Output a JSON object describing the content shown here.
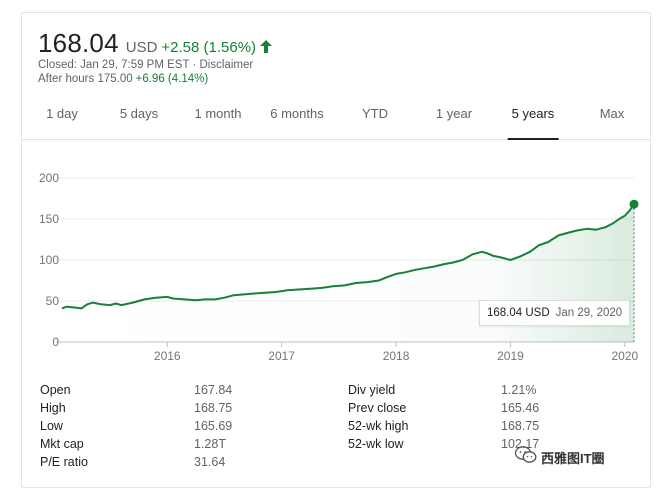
{
  "quote": {
    "price": "168.04",
    "currency": "USD",
    "change": "+2.58 (1.56%)",
    "change_color": "#188038",
    "closed_text": "Closed: Jan 29, 7:59 PM EST · Disclaimer",
    "after_hours_label": "After hours 175.00",
    "after_hours_change": "+6.96 (4.14%)"
  },
  "tabs": [
    {
      "label": "1 day",
      "active": false
    },
    {
      "label": "5 days",
      "active": false
    },
    {
      "label": "1 month",
      "active": false
    },
    {
      "label": "6 months",
      "active": false
    },
    {
      "label": "YTD",
      "active": false
    },
    {
      "label": "1 year",
      "active": false
    },
    {
      "label": "5 years",
      "active": true
    },
    {
      "label": "Max",
      "active": false
    }
  ],
  "tooltip": {
    "price": "168.04 USD",
    "date": "Jan 29, 2020"
  },
  "stats": {
    "left": [
      {
        "label": "Open",
        "value": "167.84"
      },
      {
        "label": "High",
        "value": "168.75"
      },
      {
        "label": "Low",
        "value": "165.69"
      },
      {
        "label": "Mkt cap",
        "value": "1.28T"
      },
      {
        "label": "P/E ratio",
        "value": "31.64"
      }
    ],
    "right": [
      {
        "label": "Div yield",
        "value": "1.21%"
      },
      {
        "label": "Prev close",
        "value": "165.46"
      },
      {
        "label": "52-wk high",
        "value": "168.75"
      },
      {
        "label": "52-wk low",
        "value": "102.17"
      }
    ]
  },
  "watermark": {
    "text": "西雅图IT圈"
  },
  "chart_data": {
    "type": "line",
    "title": "",
    "xlabel": "",
    "ylabel": "",
    "x_ticks": [
      "2016",
      "2017",
      "2018",
      "2019",
      "2020"
    ],
    "y_ticks": [
      0,
      50,
      100,
      150,
      200
    ],
    "ylim": [
      0,
      200
    ],
    "xlim": [
      2015.08,
      2020.08
    ],
    "line_color": "#188038",
    "grid": true,
    "series": [
      {
        "name": "",
        "x": [
          2015.08,
          2015.12,
          2015.2,
          2015.25,
          2015.3,
          2015.35,
          2015.42,
          2015.5,
          2015.55,
          2015.6,
          2015.7,
          2015.8,
          2015.9,
          2016.0,
          2016.05,
          2016.15,
          2016.25,
          2016.33,
          2016.42,
          2016.5,
          2016.58,
          2016.67,
          2016.75,
          2016.85,
          2016.95,
          2017.05,
          2017.15,
          2017.25,
          2017.35,
          2017.45,
          2017.55,
          2017.65,
          2017.75,
          2017.85,
          2017.92,
          2018.0,
          2018.08,
          2018.17,
          2018.25,
          2018.33,
          2018.42,
          2018.5,
          2018.58,
          2018.67,
          2018.75,
          2018.8,
          2018.85,
          2018.92,
          2019.0,
          2019.08,
          2019.17,
          2019.25,
          2019.33,
          2019.42,
          2019.5,
          2019.58,
          2019.67,
          2019.75,
          2019.83,
          2019.9,
          2019.95,
          2020.0,
          2020.04,
          2020.08
        ],
        "y": [
          41,
          43,
          42,
          41,
          46,
          48,
          46,
          45,
          47,
          45,
          48,
          52,
          54,
          55,
          53,
          52,
          51,
          52,
          52,
          54,
          57,
          58,
          59,
          60,
          61,
          63,
          64,
          65,
          66,
          68,
          69,
          72,
          73,
          75,
          79,
          83,
          85,
          88,
          90,
          92,
          95,
          97,
          100,
          107,
          110,
          108,
          105,
          103,
          100,
          104,
          110,
          118,
          122,
          130,
          133,
          136,
          138,
          137,
          140,
          145,
          150,
          154,
          160,
          168
        ]
      }
    ]
  }
}
